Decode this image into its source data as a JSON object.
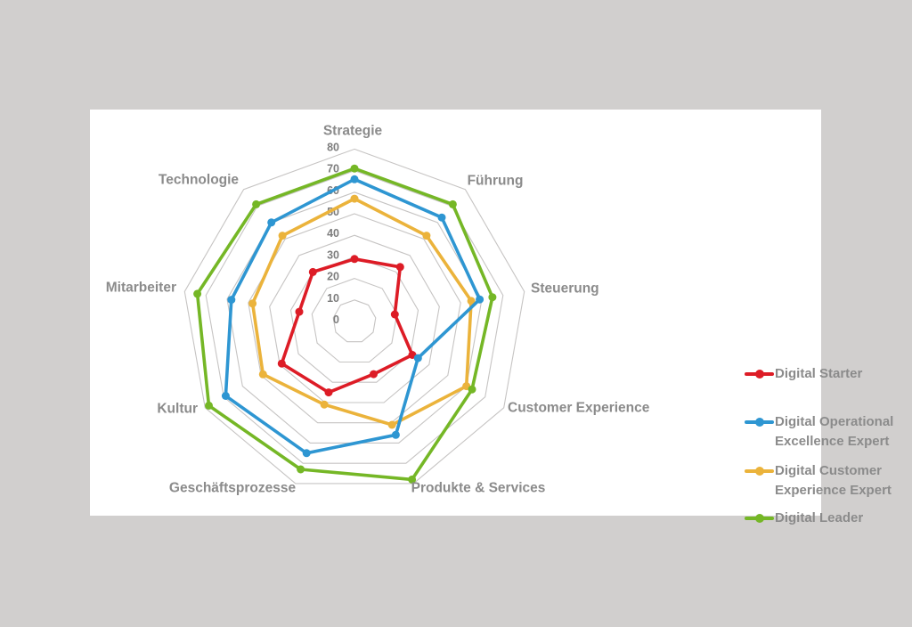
{
  "chart_data": {
    "type": "radar",
    "title": "",
    "axes": [
      "Strategie",
      "Führung",
      "Steuerung",
      "Customer Experience",
      "Produkte & Services",
      "Geschäftsprozesse",
      "Kultur",
      "Mitarbeiter",
      "Technologie"
    ],
    "scale": {
      "min": 0,
      "max": 80,
      "step": 10,
      "tick_labels": [
        "0",
        "10",
        "20",
        "30",
        "40",
        "50",
        "60",
        "70",
        "80"
      ]
    },
    "series": [
      {
        "name": "Digital Starter",
        "color": "#dd1c26",
        "values": [
          29,
          33,
          19,
          31,
          26,
          35,
          39,
          26,
          30
        ]
      },
      {
        "name": "Digital Operational Excellence Expert",
        "color": "#2e96d2",
        "values": [
          66,
          63,
          59,
          34,
          56,
          65,
          69,
          58,
          60
        ]
      },
      {
        "name": "Digital Customer Experience Expert",
        "color": "#ebb33b",
        "values": [
          57,
          52,
          55,
          60,
          51,
          41,
          49,
          48,
          52
        ]
      },
      {
        "name": "Digital Leader",
        "color": "#75b726",
        "values": [
          71,
          71,
          65,
          63,
          78,
          73,
          78,
          74,
          71
        ]
      }
    ],
    "grid_color": "#c6c4c3",
    "label_color": "#8b8b8b",
    "tick_color": "#7d7d7d",
    "grid": true,
    "legend_position": "right"
  },
  "legend": {
    "items": [
      {
        "label": "Digital Starter"
      },
      {
        "label": "Digital Operational\nExcellence Expert"
      },
      {
        "label": "Digital Customer\nExperience Expert"
      },
      {
        "label": "Digital Leader"
      }
    ]
  }
}
